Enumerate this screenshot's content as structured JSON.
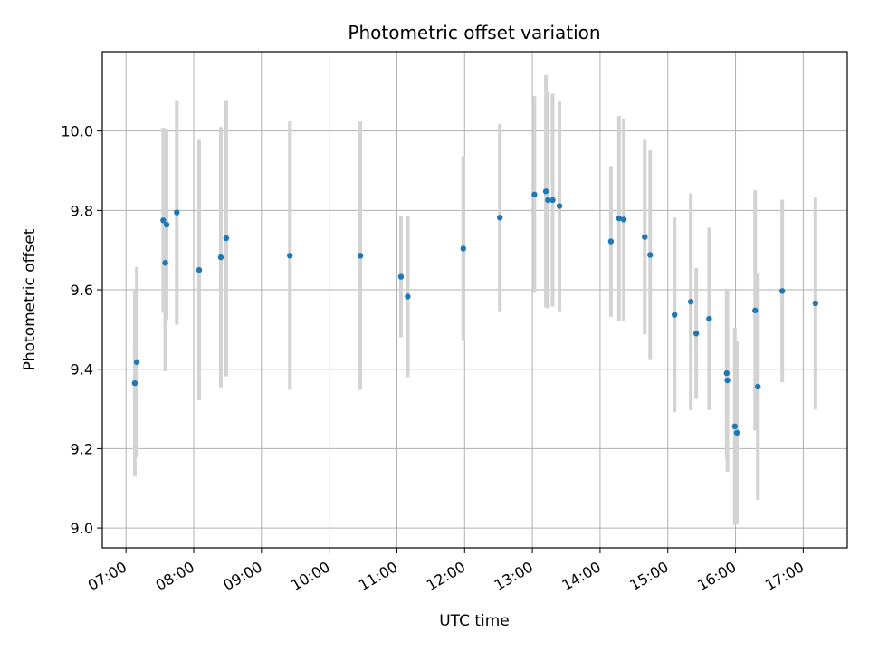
{
  "chart_data": {
    "type": "scatter",
    "title": "Photometric offset variation",
    "xlabel": "UTC time",
    "ylabel": "Photometric offset",
    "x_unit": "hour",
    "xlim": [
      6.65,
      17.65
    ],
    "ylim": [
      8.95,
      10.2
    ],
    "x_ticks": [
      7,
      8,
      9,
      10,
      11,
      12,
      13,
      14,
      15,
      16,
      17
    ],
    "x_tick_labels": [
      "07:00",
      "08:00",
      "09:00",
      "10:00",
      "11:00",
      "12:00",
      "13:00",
      "14:00",
      "15:00",
      "16:00",
      "17:00"
    ],
    "y_ticks": [
      9.0,
      9.2,
      9.4,
      9.6,
      9.8,
      10.0
    ],
    "y_tick_labels": [
      "9.0",
      "9.2",
      "9.4",
      "9.6",
      "9.8",
      "10.0"
    ],
    "grid": true,
    "colors": {
      "point": "#1f77b4",
      "errorbar": "#d3d3d3",
      "grid": "#b0b0b0"
    },
    "points": [
      {
        "x": 7.13,
        "y": 9.365,
        "err": 0.235
      },
      {
        "x": 7.16,
        "y": 9.418,
        "err": 0.24
      },
      {
        "x": 7.55,
        "y": 9.775,
        "err": 0.233
      },
      {
        "x": 7.58,
        "y": 9.668,
        "err": 0.273
      },
      {
        "x": 7.6,
        "y": 9.764,
        "err": 0.24
      },
      {
        "x": 7.75,
        "y": 9.795,
        "err": 0.283
      },
      {
        "x": 8.08,
        "y": 9.65,
        "err": 0.328
      },
      {
        "x": 8.4,
        "y": 9.682,
        "err": 0.328
      },
      {
        "x": 8.48,
        "y": 9.73,
        "err": 0.348
      },
      {
        "x": 9.42,
        "y": 9.686,
        "err": 0.338
      },
      {
        "x": 10.46,
        "y": 9.686,
        "err": 0.338
      },
      {
        "x": 11.06,
        "y": 9.633,
        "err": 0.153
      },
      {
        "x": 11.16,
        "y": 9.583,
        "err": 0.203
      },
      {
        "x": 11.98,
        "y": 9.704,
        "err": 0.233
      },
      {
        "x": 12.52,
        "y": 9.782,
        "err": 0.236
      },
      {
        "x": 13.03,
        "y": 9.84,
        "err": 0.248
      },
      {
        "x": 13.2,
        "y": 9.848,
        "err": 0.293
      },
      {
        "x": 13.23,
        "y": 9.826,
        "err": 0.273
      },
      {
        "x": 13.3,
        "y": 9.826,
        "err": 0.268
      },
      {
        "x": 13.4,
        "y": 9.811,
        "err": 0.265
      },
      {
        "x": 14.16,
        "y": 9.722,
        "err": 0.19
      },
      {
        "x": 14.28,
        "y": 9.78,
        "err": 0.258
      },
      {
        "x": 14.35,
        "y": 9.777,
        "err": 0.255
      },
      {
        "x": 14.66,
        "y": 9.733,
        "err": 0.245
      },
      {
        "x": 14.74,
        "y": 9.688,
        "err": 0.263
      },
      {
        "x": 15.1,
        "y": 9.537,
        "err": 0.245
      },
      {
        "x": 15.34,
        "y": 9.57,
        "err": 0.273
      },
      {
        "x": 15.42,
        "y": 9.49,
        "err": 0.165
      },
      {
        "x": 15.61,
        "y": 9.527,
        "err": 0.23
      },
      {
        "x": 15.87,
        "y": 9.39,
        "err": 0.213
      },
      {
        "x": 15.88,
        "y": 9.372,
        "err": 0.23
      },
      {
        "x": 15.99,
        "y": 9.256,
        "err": 0.248
      },
      {
        "x": 16.02,
        "y": 9.24,
        "err": 0.23
      },
      {
        "x": 16.29,
        "y": 9.548,
        "err": 0.303
      },
      {
        "x": 16.33,
        "y": 9.356,
        "err": 0.285
      },
      {
        "x": 16.69,
        "y": 9.597,
        "err": 0.23
      },
      {
        "x": 17.18,
        "y": 9.566,
        "err": 0.268
      }
    ]
  }
}
